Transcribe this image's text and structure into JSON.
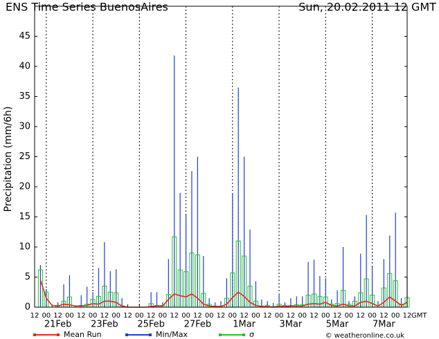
{
  "chart_data": {
    "type": "bar",
    "title": "ENS Time Series BuenosAires",
    "subtitle": "Sun, 20.02.2011 12 GMT",
    "y_label": "Precipitation (mm/6h)",
    "x_tick_labels": [
      "12",
      "00",
      "12",
      "00",
      "12",
      "00",
      "12",
      "00",
      "12",
      "00",
      "12",
      "00",
      "12",
      "00",
      "12",
      "00",
      "12",
      "00",
      "12",
      "00",
      "12",
      "00",
      "12",
      "00",
      "12",
      "00",
      "12",
      "00",
      "12",
      "00",
      "12",
      "00",
      "12"
    ],
    "x_unit": "GMT",
    "date_labels": [
      "21Feb",
      "23Feb",
      "25Feb",
      "27Feb",
      "1Mar",
      "3Mar",
      "5Mar",
      "7Mar"
    ],
    "ylim": [
      0,
      50
    ],
    "yticks": [
      0,
      5,
      10,
      15,
      20,
      25,
      30,
      35,
      40,
      45
    ],
    "credit": "© weatheronline.co.uk",
    "series": [
      {
        "name": "Mean Run",
        "color": "#e8281e",
        "values": [
          null,
          4.5,
          1.5,
          0.3,
          0.2,
          0.5,
          0.4,
          0.2,
          0.2,
          0.3,
          0.6,
          0.5,
          1,
          1,
          0.8,
          0.2,
          0,
          0,
          0,
          0,
          0.1,
          0.2,
          0.2,
          1.3,
          2.2,
          1.9,
          1.7,
          2.2,
          1.5,
          0.5,
          0.2,
          0.1,
          0.1,
          0.5,
          1.6,
          2.5,
          1.8,
          0.8,
          0.3,
          0.1,
          0.1,
          0,
          0.2,
          0.1,
          0.2,
          0.2,
          0.2,
          0.5,
          0.6,
          0.5,
          0.8,
          0.3,
          0.2,
          0.5,
          0.2,
          0.2,
          0.8,
          1,
          0.6,
          0.2,
          0.8,
          1.7,
          1,
          0.3,
          0.8
        ]
      },
      {
        "name": "Min/Max",
        "color": "#1e3cd2",
        "values": [
          0,
          7,
          3,
          0.5,
          0.8,
          3.8,
          5.3,
          0.3,
          2,
          3.4,
          2.5,
          6.5,
          10.8,
          6,
          6.3,
          1.5,
          0,
          0,
          0,
          0,
          2.5,
          2.5,
          0.8,
          8,
          41.8,
          19,
          15.3,
          22.6,
          25,
          8.5,
          1.5,
          0.8,
          1,
          4.8,
          18.9,
          36.5,
          25,
          12.9,
          4.3,
          1.3,
          1,
          0.7,
          2.3,
          0.8,
          1.5,
          1.8,
          1.8,
          7.5,
          7.9,
          5.2,
          4.8,
          1.3,
          2.8,
          10,
          1,
          1.8,
          8.9,
          15.3,
          6.7,
          1,
          8,
          11.9,
          15.7,
          1.5,
          5
        ]
      },
      {
        "name": "σ",
        "color": "#1ec81e",
        "values": [
          0,
          6.2,
          2.5,
          0,
          0.3,
          1,
          1.7,
          0,
          0.3,
          0.5,
          1.3,
          1.8,
          3.5,
          2.5,
          2.4,
          0.2,
          0,
          0,
          0,
          0,
          0.6,
          0.3,
          0.3,
          2.1,
          11.7,
          6.2,
          5.9,
          9,
          8.7,
          2.3,
          0.5,
          0.2,
          0.2,
          1.5,
          5.7,
          11,
          8.5,
          3.5,
          1,
          0.2,
          0.3,
          0.1,
          0.5,
          0.3,
          0.3,
          0.4,
          0.4,
          2,
          2.2,
          1.8,
          1.7,
          0.5,
          0.6,
          2.8,
          0.5,
          1,
          2.4,
          4.7,
          2,
          0.3,
          3.2,
          5.6,
          4.4,
          0.5,
          1.6
        ]
      }
    ]
  }
}
